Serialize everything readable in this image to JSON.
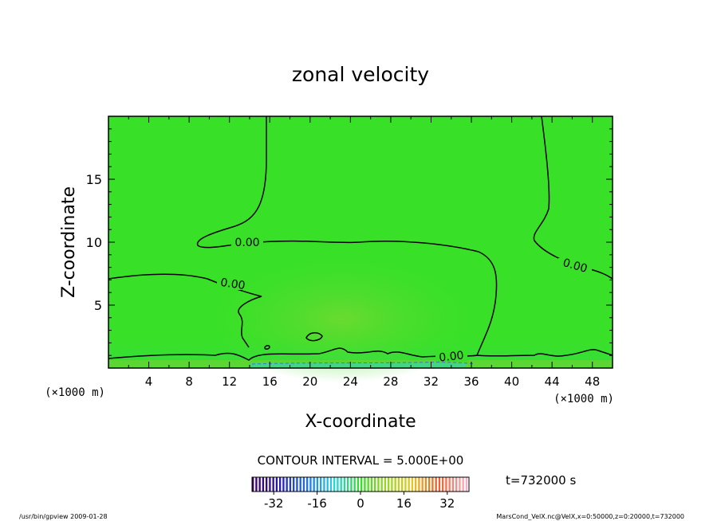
{
  "chart_data": {
    "type": "heatmap",
    "title": "zonal velocity",
    "xlabel": "X-coordinate",
    "ylabel": "Z-coordinate",
    "x_unit_label": "(×1000 m)",
    "z_unit_label": "(×1000 m)",
    "xlim": [
      0,
      50
    ],
    "ylim": [
      0,
      20
    ],
    "x_ticks": [
      4,
      8,
      12,
      16,
      20,
      24,
      28,
      32,
      36,
      40,
      44,
      48
    ],
    "y_ticks": [
      5,
      10,
      15
    ],
    "contour_labels": [
      "0.00",
      "0.00",
      "0.00",
      "0.00"
    ],
    "contour_interval_text": "CONTOUR INTERVAL = 5.000E+00",
    "time_text": "t=732000 s",
    "colorbar": {
      "range": [
        -40,
        40
      ],
      "ticks": [
        -32,
        -16,
        0,
        16,
        32
      ],
      "colormap": "rainbow (purple-blue-cyan-green-yellow-orange-red-pink)"
    },
    "field_color_dominant": "#39e028",
    "footer_left": "/usr/bin/gpview  2009-01-28",
    "footer_right": "MarsCond_VelX.nc@VelX,x=0:50000,z=0:20000,t=732000"
  }
}
